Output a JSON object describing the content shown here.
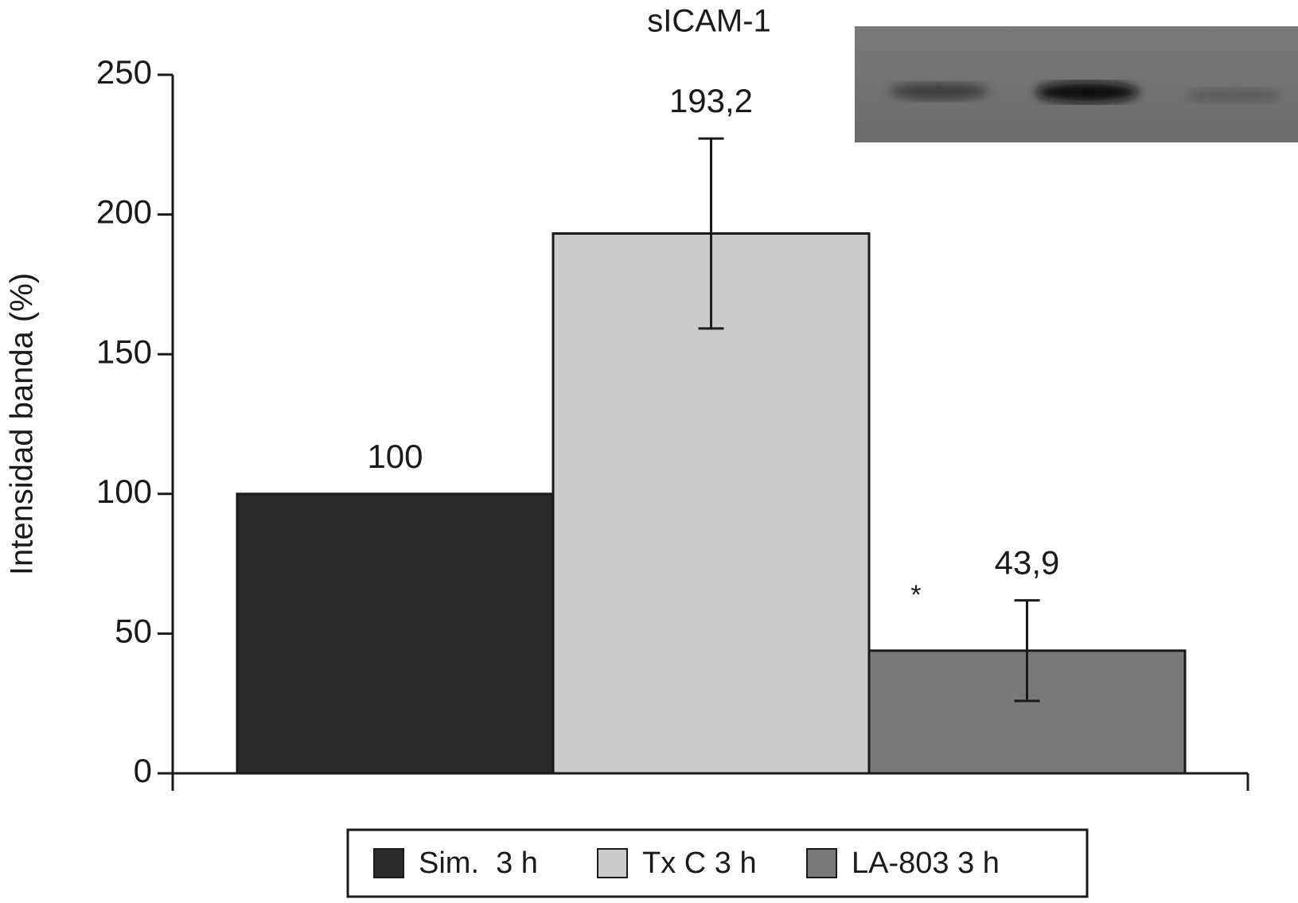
{
  "chart_data": {
    "type": "bar",
    "title": "sICAM-1",
    "y_label": "Intensidad banda (%)",
    "series": [
      {
        "name": "Sim.  3 h",
        "color": "#2a2a2a",
        "values": [
          100
        ],
        "value_labels": [
          "100"
        ]
      },
      {
        "name": "Tx C 3 h",
        "color": "#cbcbcb",
        "values": [
          193.2
        ],
        "value_labels": [
          "193,2"
        ],
        "errors": [
          34
        ]
      },
      {
        "name": "LA-803 3 h",
        "color": "#797979",
        "values": [
          43.9
        ],
        "value_labels": [
          "43,9"
        ],
        "errors": [
          18
        ]
      }
    ],
    "annotation": "*",
    "ylim": [
      0,
      250
    ],
    "yticks": [
      0,
      50,
      100,
      150,
      200,
      250
    ]
  }
}
